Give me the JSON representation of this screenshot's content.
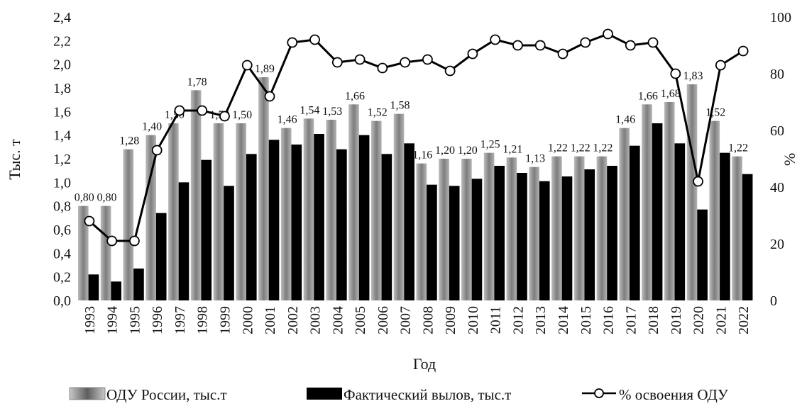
{
  "chart_data": {
    "type": "bar",
    "xlabel": "Год",
    "ylabel": "Тыс. т",
    "y2label": "%",
    "ylim": [
      0,
      2.4
    ],
    "y2lim": [
      0,
      100
    ],
    "yticks": [
      "0,0",
      "0,2",
      "0,4",
      "0,6",
      "0,8",
      "1,0",
      "1,2",
      "1,4",
      "1,6",
      "1,8",
      "2,0",
      "2,2",
      "2,4"
    ],
    "y2ticks": [
      "0",
      "20",
      "40",
      "60",
      "80",
      "100"
    ],
    "categories": [
      "1993",
      "1994",
      "1995",
      "1996",
      "1997",
      "1998",
      "1999",
      "2000",
      "2001",
      "2002",
      "2003",
      "2004",
      "2005",
      "2006",
      "2007",
      "2008",
      "2009",
      "2010",
      "2011",
      "2012",
      "2013",
      "2014",
      "2015",
      "2016",
      "2017",
      "2018",
      "2019",
      "2020",
      "2021",
      "2022"
    ],
    "series": [
      {
        "name": "ОДУ России, тыс.т",
        "kind": "bar",
        "color": "#8c8c8c",
        "values": [
          0.8,
          0.8,
          1.28,
          1.4,
          1.5,
          1.78,
          1.5,
          1.5,
          1.89,
          1.46,
          1.54,
          1.53,
          1.66,
          1.52,
          1.58,
          1.16,
          1.2,
          1.2,
          1.25,
          1.21,
          1.13,
          1.22,
          1.22,
          1.22,
          1.46,
          1.66,
          1.68,
          1.83,
          1.52,
          1.22
        ],
        "labels": [
          "0,80",
          "0,80",
          "1,28",
          "1,40",
          "1,50",
          "1,78",
          "1,50",
          "1,50",
          "1,89",
          "1,46",
          "1,54",
          "1,53",
          "1,66",
          "1,52",
          "1,58",
          "1,16",
          "1,20",
          "1,20",
          "1,25",
          "1,21",
          "1,13",
          "1,22",
          "1,22",
          "1,22",
          "1,46",
          "1,66",
          "1,68",
          "1,83",
          "1,52",
          "1,22"
        ]
      },
      {
        "name": "Фактический вылов, тыс.т",
        "kind": "bar",
        "color": "#000000",
        "values": [
          0.22,
          0.16,
          0.27,
          0.74,
          1.0,
          1.19,
          0.97,
          1.24,
          1.36,
          1.32,
          1.41,
          1.28,
          1.4,
          1.24,
          1.33,
          0.98,
          0.97,
          1.03,
          1.14,
          1.08,
          1.01,
          1.05,
          1.11,
          1.14,
          1.31,
          1.5,
          1.33,
          0.77,
          1.25,
          1.07
        ]
      },
      {
        "name": "% освоения ОДУ",
        "kind": "line",
        "axis": "y2",
        "color": "#000000",
        "values": [
          28,
          21,
          21,
          53,
          67,
          67,
          65,
          83,
          72,
          91,
          92,
          84,
          85,
          82,
          84,
          85,
          81,
          87,
          92,
          90,
          90,
          87,
          91,
          94,
          90,
          91,
          80,
          42,
          83,
          88
        ]
      }
    ]
  }
}
